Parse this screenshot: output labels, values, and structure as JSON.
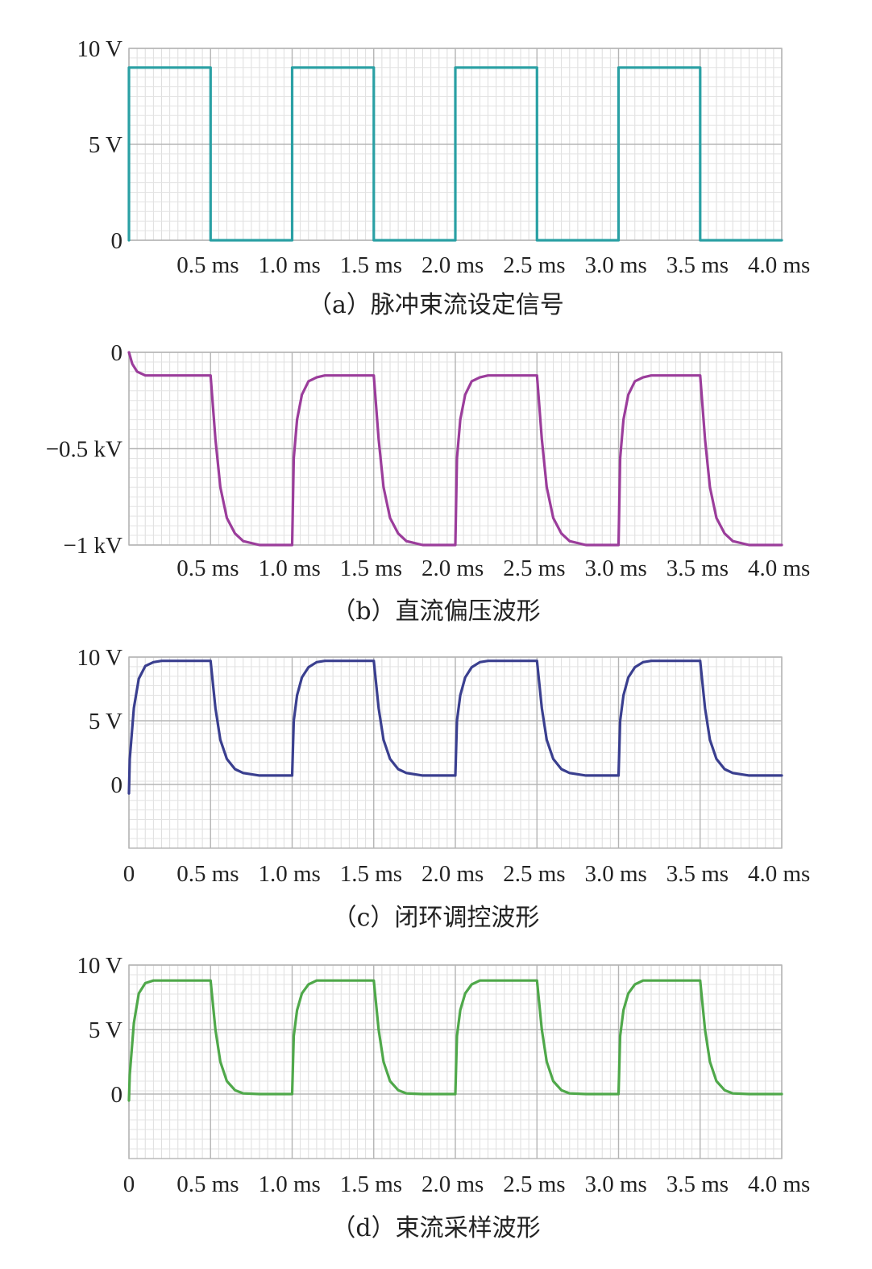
{
  "chart_data": [
    {
      "type": "line",
      "caption": "（a）脉冲束流设定信号",
      "color": "#2aa0a4",
      "y_ticks": [
        {
          "value": 10,
          "label": "10 V"
        },
        {
          "value": 5,
          "label": "5 V"
        },
        {
          "value": 0,
          "label": "0"
        }
      ],
      "ylim": [
        0,
        10
      ],
      "x_ticks": [
        "0.5 ms",
        "1.0 ms",
        "1.5 ms",
        "2.0 ms",
        "2.5 ms",
        "3.0 ms",
        "3.5 ms",
        "4.0 ms"
      ],
      "xlim": [
        0,
        4.0
      ],
      "grid": true,
      "series": [
        {
          "x": [
            0,
            0,
            0.5,
            0.5,
            1.0,
            1.0,
            1.5,
            1.5,
            2.0,
            2.0,
            2.5,
            2.5,
            3.0,
            3.0,
            3.5,
            3.5,
            4.0
          ],
          "y": [
            0,
            9,
            9,
            0,
            0,
            9,
            9,
            0,
            0,
            9,
            9,
            0,
            0,
            9,
            9,
            0,
            0
          ]
        }
      ]
    },
    {
      "type": "line",
      "caption": "（b）直流偏压波形",
      "color": "#9b3d9b",
      "y_ticks": [
        {
          "value": 0,
          "label": "0"
        },
        {
          "value": -0.5,
          "label": "−0.5 kV"
        },
        {
          "value": -1,
          "label": "−1 kV"
        }
      ],
      "ylim": [
        -1,
        0
      ],
      "x_ticks": [
        "0.5 ms",
        "1.0 ms",
        "1.5 ms",
        "2.0 ms",
        "2.5 ms",
        "3.0 ms",
        "3.5 ms",
        "4.0 ms"
      ],
      "xlim": [
        0,
        4.0
      ],
      "grid": true,
      "series": [
        {
          "x": [
            0,
            0.02,
            0.05,
            0.1,
            0.2,
            0.5,
            0.53,
            0.56,
            0.6,
            0.65,
            0.7,
            0.8,
            1.0,
            1.01,
            1.03,
            1.06,
            1.1,
            1.15,
            1.2,
            1.5,
            1.53,
            1.56,
            1.6,
            1.65,
            1.7,
            1.8,
            2.0,
            2.01,
            2.03,
            2.06,
            2.1,
            2.15,
            2.2,
            2.5,
            2.53,
            2.56,
            2.6,
            2.65,
            2.7,
            2.8,
            3.0,
            3.01,
            3.03,
            3.06,
            3.1,
            3.15,
            3.2,
            3.5,
            3.53,
            3.56,
            3.6,
            3.65,
            3.7,
            3.8,
            4.0
          ],
          "y": [
            0,
            -0.06,
            -0.1,
            -0.12,
            -0.12,
            -0.12,
            -0.45,
            -0.7,
            -0.86,
            -0.94,
            -0.98,
            -1.0,
            -1.0,
            -0.55,
            -0.35,
            -0.22,
            -0.15,
            -0.13,
            -0.12,
            -0.12,
            -0.45,
            -0.7,
            -0.86,
            -0.94,
            -0.98,
            -1.0,
            -1.0,
            -0.55,
            -0.35,
            -0.22,
            -0.15,
            -0.13,
            -0.12,
            -0.12,
            -0.45,
            -0.7,
            -0.86,
            -0.94,
            -0.98,
            -1.0,
            -1.0,
            -0.55,
            -0.35,
            -0.22,
            -0.15,
            -0.13,
            -0.12,
            -0.12,
            -0.45,
            -0.7,
            -0.86,
            -0.94,
            -0.98,
            -1.0,
            -1.0
          ]
        }
      ]
    },
    {
      "type": "line",
      "caption": "（c）闭环调控波形",
      "color": "#3a3f8f",
      "y_ticks": [
        {
          "value": 10,
          "label": "10 V"
        },
        {
          "value": 5,
          "label": "5 V"
        },
        {
          "value": 0,
          "label": "0"
        }
      ],
      "ylim": [
        -5,
        10
      ],
      "x_ticks": [
        "0",
        "0.5 ms",
        "1.0 ms",
        "1.5 ms",
        "2.0 ms",
        "2.5 ms",
        "3.0 ms",
        "3.5 ms",
        "4.0 ms"
      ],
      "xlim": [
        0,
        4.0
      ],
      "grid": true,
      "series": [
        {
          "x": [
            0,
            0.005,
            0.03,
            0.06,
            0.1,
            0.15,
            0.2,
            0.5,
            0.53,
            0.56,
            0.6,
            0.65,
            0.7,
            0.8,
            1.0,
            1.01,
            1.03,
            1.06,
            1.1,
            1.15,
            1.2,
            1.5,
            1.53,
            1.56,
            1.6,
            1.65,
            1.7,
            1.8,
            2.0,
            2.01,
            2.03,
            2.06,
            2.1,
            2.15,
            2.2,
            2.5,
            2.53,
            2.56,
            2.6,
            2.65,
            2.7,
            2.8,
            3.0,
            3.01,
            3.03,
            3.06,
            3.1,
            3.15,
            3.2,
            3.5,
            3.53,
            3.56,
            3.6,
            3.65,
            3.7,
            3.8,
            4.0
          ],
          "y": [
            -0.7,
            2.0,
            6.0,
            8.3,
            9.3,
            9.6,
            9.7,
            9.7,
            6.0,
            3.5,
            2.0,
            1.2,
            0.9,
            0.7,
            0.7,
            5.0,
            7.0,
            8.4,
            9.2,
            9.6,
            9.7,
            9.7,
            6.0,
            3.5,
            2.0,
            1.2,
            0.9,
            0.7,
            0.7,
            5.0,
            7.0,
            8.4,
            9.2,
            9.6,
            9.7,
            9.7,
            6.0,
            3.5,
            2.0,
            1.2,
            0.9,
            0.7,
            0.7,
            5.0,
            7.0,
            8.4,
            9.2,
            9.6,
            9.7,
            9.7,
            6.0,
            3.5,
            2.0,
            1.2,
            0.9,
            0.7,
            0.7
          ]
        }
      ]
    },
    {
      "type": "line",
      "caption": "（d）束流采样波形",
      "color": "#4fa84a",
      "y_ticks": [
        {
          "value": 10,
          "label": "10 V"
        },
        {
          "value": 5,
          "label": "5 V"
        },
        {
          "value": 0,
          "label": "0"
        }
      ],
      "ylim": [
        -5,
        10
      ],
      "x_ticks": [
        "0",
        "0.5 ms",
        "1.0 ms",
        "1.5 ms",
        "2.0 ms",
        "2.5 ms",
        "3.0 ms",
        "3.5 ms",
        "4.0 ms"
      ],
      "xlim": [
        0,
        4.0
      ],
      "grid": true,
      "series": [
        {
          "x": [
            0,
            0.005,
            0.03,
            0.06,
            0.1,
            0.15,
            0.2,
            0.5,
            0.53,
            0.56,
            0.6,
            0.65,
            0.7,
            0.8,
            1.0,
            1.01,
            1.03,
            1.06,
            1.1,
            1.15,
            1.2,
            1.5,
            1.53,
            1.56,
            1.6,
            1.65,
            1.7,
            1.8,
            2.0,
            2.01,
            2.03,
            2.06,
            2.1,
            2.15,
            2.2,
            2.5,
            2.53,
            2.56,
            2.6,
            2.65,
            2.7,
            2.8,
            3.0,
            3.01,
            3.03,
            3.06,
            3.1,
            3.15,
            3.2,
            3.5,
            3.53,
            3.56,
            3.6,
            3.65,
            3.7,
            3.8,
            4.0
          ],
          "y": [
            -0.5,
            1.5,
            5.5,
            7.8,
            8.6,
            8.8,
            8.8,
            8.8,
            5.0,
            2.5,
            1.0,
            0.3,
            0.05,
            0.0,
            0.0,
            4.5,
            6.5,
            7.8,
            8.5,
            8.8,
            8.8,
            8.8,
            5.0,
            2.5,
            1.0,
            0.3,
            0.05,
            0.0,
            0.0,
            4.5,
            6.5,
            7.8,
            8.5,
            8.8,
            8.8,
            8.8,
            5.0,
            2.5,
            1.0,
            0.3,
            0.05,
            0.0,
            0.0,
            4.5,
            6.5,
            7.8,
            8.5,
            8.8,
            8.8,
            8.8,
            5.0,
            2.5,
            1.0,
            0.3,
            0.05,
            0.0,
            0.0
          ]
        }
      ]
    }
  ]
}
